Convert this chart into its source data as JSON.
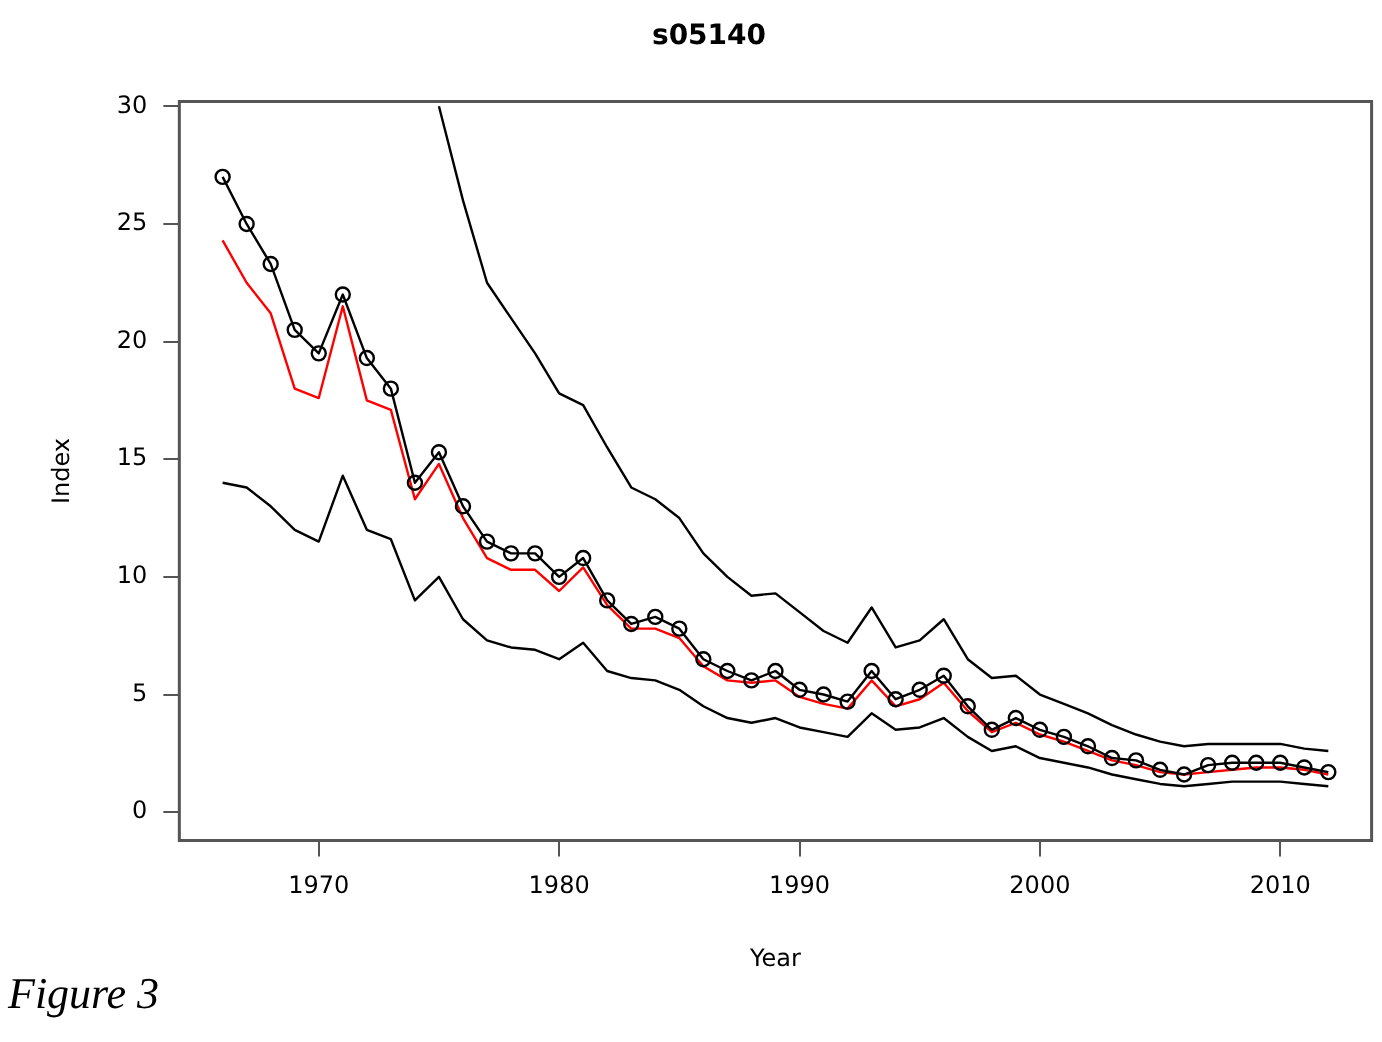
{
  "chart_data": {
    "type": "line",
    "title": "s05140",
    "xlabel": "Year",
    "ylabel": "Index",
    "annotations": [
      "Figure 3"
    ],
    "x": [
      1966,
      1967,
      1968,
      1969,
      1970,
      1971,
      1972,
      1973,
      1974,
      1975,
      1976,
      1977,
      1978,
      1979,
      1980,
      1981,
      1982,
      1983,
      1984,
      1985,
      1986,
      1987,
      1988,
      1989,
      1990,
      1991,
      1992,
      1993,
      1994,
      1995,
      1996,
      1997,
      1998,
      1999,
      2000,
      2001,
      2002,
      2003,
      2004,
      2005,
      2006,
      2007,
      2008,
      2009,
      2010,
      2011,
      2012
    ],
    "series": [
      {
        "color": "#000000",
        "marker": "circle",
        "values": [
          27.0,
          25.0,
          23.3,
          20.5,
          19.5,
          22.0,
          19.3,
          18.0,
          14.0,
          15.3,
          13.0,
          11.5,
          11.0,
          11.0,
          10.0,
          10.8,
          9.0,
          8.0,
          8.3,
          7.8,
          6.5,
          6.0,
          5.6,
          6.0,
          5.2,
          5.0,
          4.7,
          6.0,
          4.8,
          5.2,
          5.8,
          4.5,
          3.5,
          4.0,
          3.5,
          3.2,
          2.8,
          2.3,
          2.2,
          1.8,
          1.6,
          2.0,
          2.1,
          2.1,
          2.1,
          1.9,
          1.7
        ]
      },
      {
        "color": "#ff0000",
        "marker": "none",
        "values": [
          24.3,
          22.5,
          21.2,
          18.0,
          17.6,
          21.5,
          17.5,
          17.1,
          13.3,
          14.8,
          12.5,
          10.8,
          10.3,
          10.3,
          9.4,
          10.4,
          8.8,
          7.8,
          7.8,
          7.4,
          6.2,
          5.6,
          5.5,
          5.6,
          4.9,
          4.6,
          4.4,
          5.6,
          4.5,
          4.8,
          5.5,
          4.3,
          3.4,
          3.8,
          3.3,
          3.0,
          2.6,
          2.2,
          2.0,
          1.7,
          1.6,
          1.7,
          1.8,
          1.9,
          1.9,
          1.8,
          1.6
        ]
      },
      {
        "color": "#000000",
        "marker": "none",
        "values": [
          14.0,
          13.8,
          13.0,
          12.0,
          11.5,
          14.3,
          12.0,
          11.6,
          9.0,
          10.0,
          8.2,
          7.3,
          7.0,
          6.9,
          6.5,
          7.2,
          6.0,
          5.7,
          5.6,
          5.2,
          4.5,
          4.0,
          3.8,
          4.0,
          3.6,
          3.4,
          3.2,
          4.2,
          3.5,
          3.6,
          4.0,
          3.2,
          2.6,
          2.8,
          2.3,
          2.1,
          1.9,
          1.6,
          1.4,
          1.2,
          1.1,
          1.2,
          1.3,
          1.3,
          1.3,
          1.2,
          1.1
        ]
      },
      {
        "color": "#000000",
        "marker": "none",
        "x": [
          1975,
          1976,
          1977,
          1978,
          1979,
          1980,
          1981,
          1982,
          1983,
          1984,
          1985,
          1986,
          1987,
          1988,
          1989,
          1990,
          1991,
          1992,
          1993,
          1994,
          1995,
          1996,
          1997,
          1998,
          1999,
          2000,
          2001,
          2002,
          2003,
          2004,
          2005,
          2006,
          2007,
          2008,
          2009,
          2010,
          2011,
          2012
        ],
        "values": [
          30.0,
          26.0,
          22.5,
          21.0,
          19.5,
          17.8,
          17.3,
          15.5,
          13.8,
          13.3,
          12.5,
          11.0,
          10.0,
          9.2,
          9.3,
          8.5,
          7.7,
          7.2,
          8.7,
          7.0,
          7.3,
          8.2,
          6.5,
          5.7,
          5.8,
          5.0,
          4.6,
          4.2,
          3.7,
          3.3,
          3.0,
          2.8,
          2.9,
          2.9,
          2.9,
          2.9,
          2.7,
          2.6
        ]
      }
    ],
    "xlim": [
      1964.2,
      2013.8
    ],
    "xticks": [
      1970,
      1980,
      1990,
      2000,
      2010
    ],
    "ylim": [
      -1.2,
      30.2
    ],
    "yticks": [
      0,
      5,
      10,
      15,
      20,
      25,
      30
    ]
  }
}
